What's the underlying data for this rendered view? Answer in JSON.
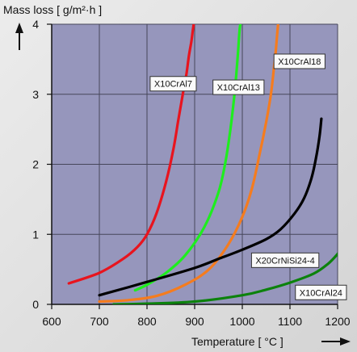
{
  "chart_data": {
    "type": "line",
    "title": "",
    "ylabel": "Mass loss [ g/m²·h ]",
    "xlabel": "Temperature [ °C ]",
    "xlim": [
      600,
      1200
    ],
    "ylim": [
      0,
      4
    ],
    "x_ticks": [
      600,
      700,
      800,
      900,
      1000,
      1100,
      1200
    ],
    "y_ticks": [
      0,
      1,
      2,
      3,
      4
    ],
    "x_tick_labels": [
      "600",
      "700",
      "800",
      "900",
      "1000",
      "1100",
      "1200"
    ],
    "y_tick_labels": [
      "0",
      "1",
      "2",
      "3",
      "4"
    ],
    "grid": true,
    "plot_background": "#9696bc",
    "series": [
      {
        "name": "X10CrAl7",
        "color": "#e8141e",
        "points": [
          [
            636,
            0.3
          ],
          [
            700,
            0.45
          ],
          [
            750,
            0.65
          ],
          [
            780,
            0.82
          ],
          [
            800,
            1.0
          ],
          [
            820,
            1.3
          ],
          [
            840,
            1.75
          ],
          [
            855,
            2.2
          ],
          [
            865,
            2.6
          ],
          [
            875,
            3.0
          ],
          [
            883,
            3.3
          ],
          [
            888,
            3.55
          ],
          [
            893,
            3.75
          ],
          [
            896,
            3.9
          ],
          [
            898,
            4.0
          ]
        ]
      },
      {
        "name": "X10CrAl13",
        "color": "#1eee1e",
        "points": [
          [
            775,
            0.2
          ],
          [
            800,
            0.28
          ],
          [
            840,
            0.45
          ],
          [
            880,
            0.7
          ],
          [
            920,
            1.1
          ],
          [
            950,
            1.6
          ],
          [
            965,
            2.05
          ],
          [
            975,
            2.5
          ],
          [
            982,
            2.9
          ],
          [
            987,
            3.25
          ],
          [
            991,
            3.6
          ],
          [
            994,
            3.9
          ],
          [
            996,
            4.0
          ]
        ]
      },
      {
        "name": "X10CrAl18",
        "color": "#f57c1e",
        "points": [
          [
            700,
            0.04
          ],
          [
            760,
            0.06
          ],
          [
            820,
            0.12
          ],
          [
            880,
            0.28
          ],
          [
            930,
            0.5
          ],
          [
            970,
            0.85
          ],
          [
            1000,
            1.25
          ],
          [
            1020,
            1.65
          ],
          [
            1035,
            2.1
          ],
          [
            1050,
            2.6
          ],
          [
            1060,
            3.0
          ],
          [
            1066,
            3.35
          ],
          [
            1070,
            3.6
          ],
          [
            1073,
            3.85
          ],
          [
            1075,
            4.0
          ]
        ]
      },
      {
        "name": "X20CrNiSi24-4",
        "color": "#000000",
        "points": [
          [
            700,
            0.13
          ],
          [
            800,
            0.32
          ],
          [
            900,
            0.52
          ],
          [
            950,
            0.65
          ],
          [
            1000,
            0.78
          ],
          [
            1050,
            0.93
          ],
          [
            1080,
            1.07
          ],
          [
            1110,
            1.3
          ],
          [
            1130,
            1.52
          ],
          [
            1145,
            1.8
          ],
          [
            1155,
            2.1
          ],
          [
            1162,
            2.4
          ],
          [
            1166,
            2.65
          ]
        ]
      },
      {
        "name": "X10CrAl24",
        "color": "#0c820c",
        "points": [
          [
            730,
            0.0
          ],
          [
            800,
            0.01
          ],
          [
            900,
            0.04
          ],
          [
            1000,
            0.13
          ],
          [
            1050,
            0.21
          ],
          [
            1100,
            0.31
          ],
          [
            1150,
            0.44
          ],
          [
            1180,
            0.58
          ],
          [
            1200,
            0.72
          ],
          [
            1215,
            0.85
          ]
        ]
      }
    ],
    "series_labels": [
      {
        "text": "X10CrAl7",
        "x": 855,
        "y": 3.15
      },
      {
        "text": "X10CrAl13",
        "x": 992,
        "y": 3.1
      },
      {
        "text": "X10CrAl18",
        "x": 1120,
        "y": 3.47
      },
      {
        "text": "X20CrNiSi24-4",
        "x": 1090,
        "y": 0.63
      },
      {
        "text": "X10CrAl24",
        "x": 1165,
        "y": 0.17
      }
    ]
  }
}
